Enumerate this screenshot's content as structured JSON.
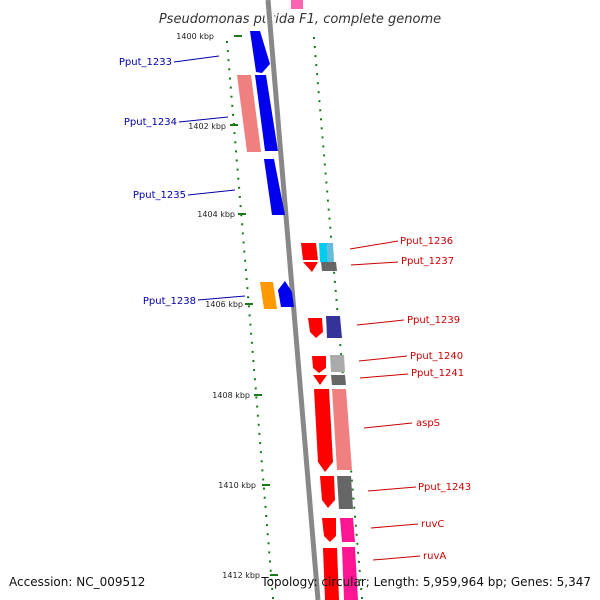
{
  "title": "Pseudomonas putida F1, complete genome",
  "accession_text": "Accession: NC_009512",
  "summary_text": "Topology: circular; Length: 5,959,964 bp; Genes: 5,347",
  "ticks": [
    "1400 kbp",
    "1402 kbp",
    "1404 kbp",
    "1406 kbp",
    "1408 kbp",
    "1410 kbp",
    "1412 kbp"
  ],
  "genes_left": [
    "Pput_1233",
    "Pput_1234",
    "Pput_1235",
    "Pput_1238"
  ],
  "genes_right": [
    "Pput_1236",
    "Pput_1237",
    "Pput_1239",
    "Pput_1240",
    "Pput_1241",
    "aspS",
    "Pput_1243",
    "ruvC",
    "ruvA"
  ],
  "colors": {
    "forward_label": "#0000aa",
    "reverse_label": "#cc0000",
    "backbone": "#888888",
    "tick": "#1a7a1a",
    "blue": "#0000ee",
    "red": "#ff0000",
    "salmon": "#f08080",
    "magenta": "#ff1493",
    "orange": "#ff9900",
    "gray": "#666666"
  }
}
